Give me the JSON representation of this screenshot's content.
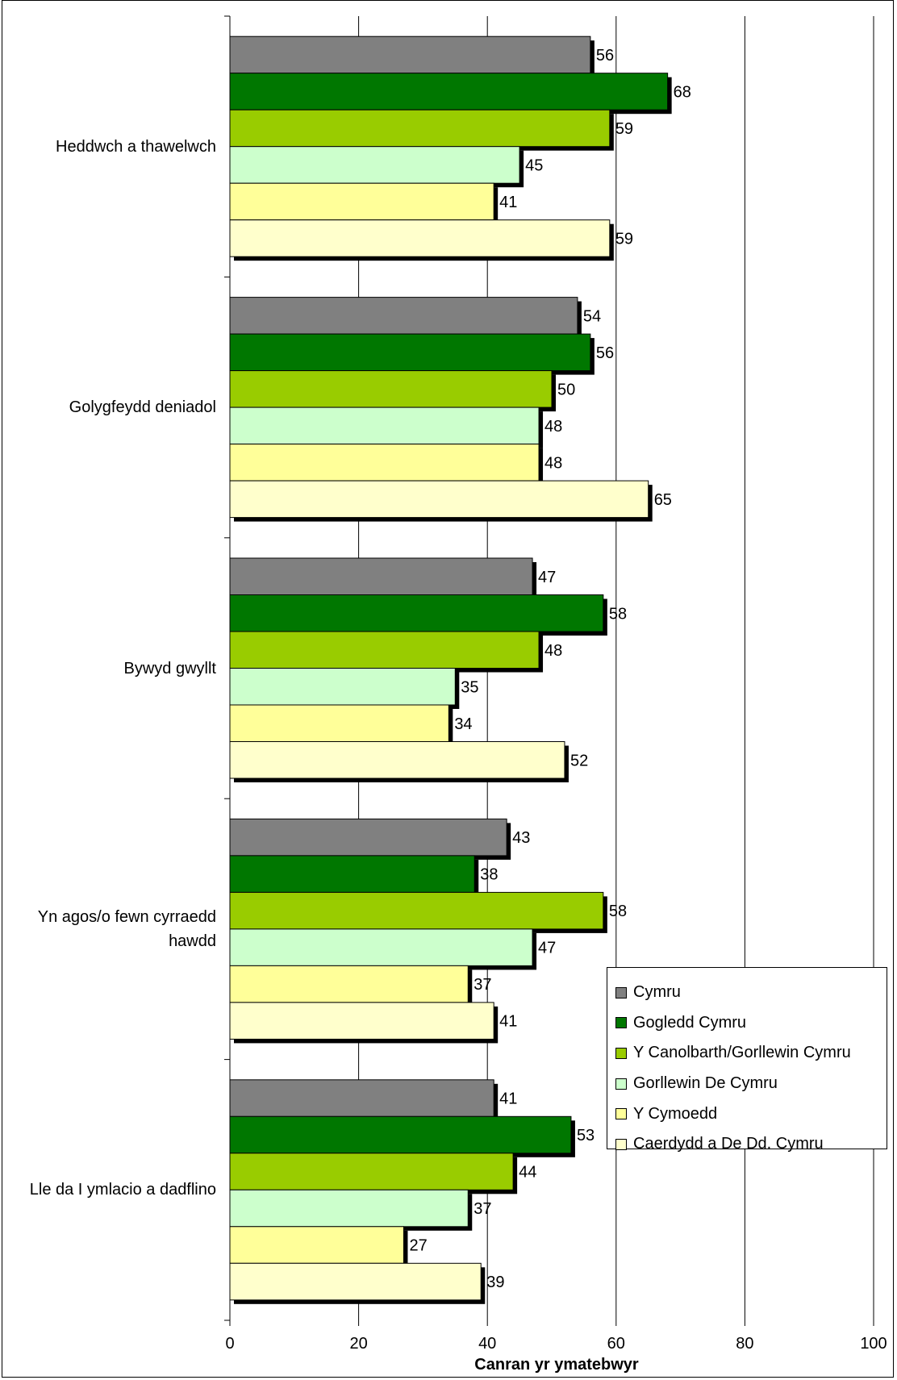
{
  "chart_data": {
    "type": "bar",
    "orientation": "horizontal",
    "xlabel": "Canran yr ymatebwyr",
    "xlim": [
      0,
      100
    ],
    "x_ticks": [
      "0",
      "20",
      "40",
      "60",
      "80",
      "100"
    ],
    "grid": true,
    "legend_position": "right",
    "categories": [
      "Heddwch a thawelwch",
      "Golygfeydd deniadol",
      "Bywyd gwyllt",
      "Yn agos/o fewn cyrraedd hawdd",
      "Lle da I ymlacio a dadflino"
    ],
    "series": [
      {
        "name": "Cymru",
        "color": "#808080",
        "values": [
          56,
          54,
          47,
          43,
          41
        ]
      },
      {
        "name": "Gogledd Cymru",
        "color": "#007700",
        "values": [
          68,
          56,
          58,
          38,
          53
        ]
      },
      {
        "name": "Y Canolbarth/Gorllewin Cymru",
        "color": "#99CC00",
        "values": [
          59,
          50,
          48,
          58,
          44
        ]
      },
      {
        "name": "Gorllewin De Cymru",
        "color": "#CCFFCC",
        "values": [
          45,
          48,
          35,
          47,
          37
        ]
      },
      {
        "name": "Y Cymoedd",
        "color": "#FFFF99",
        "values": [
          41,
          48,
          34,
          37,
          27
        ]
      },
      {
        "name": "Caerdydd a De Dd. Cymru",
        "color": "#FFFFCC",
        "values": [
          59,
          65,
          52,
          41,
          39
        ]
      }
    ]
  }
}
